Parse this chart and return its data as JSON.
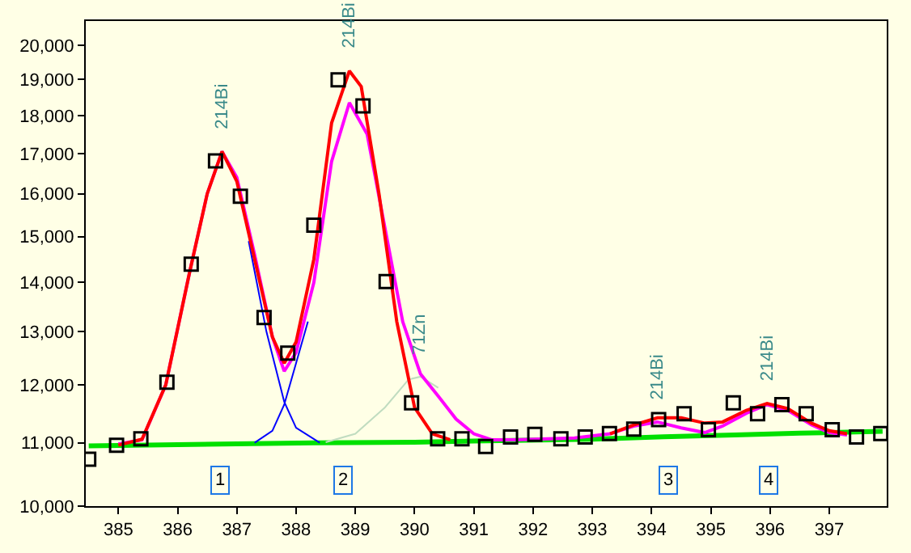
{
  "chart_data": {
    "type": "line",
    "xlim": [
      384.45,
      397.97
    ],
    "xticks": [
      385,
      386,
      387,
      388,
      389,
      390,
      391,
      392,
      393,
      394,
      395,
      396,
      397
    ],
    "ylim": [
      10000,
      20750
    ],
    "yticks": [
      {
        "value": 10000,
        "label": "10,000"
      },
      {
        "value": 11000,
        "label": "11,000"
      },
      {
        "value": 12000,
        "label": "12,000"
      },
      {
        "value": 13000,
        "label": "13,000"
      },
      {
        "value": 14000,
        "label": "14,000"
      },
      {
        "value": 15000,
        "label": "15,000"
      },
      {
        "value": 16000,
        "label": "16,000"
      },
      {
        "value": 17000,
        "label": "17,000"
      },
      {
        "value": 18000,
        "label": "18,000"
      },
      {
        "value": 19000,
        "label": "19,000"
      },
      {
        "value": 20000,
        "label": "20,000"
      }
    ],
    "log": true,
    "grid": false,
    "legend": false,
    "series": [
      {
        "color": "#00e000",
        "x": [
          384.5,
          386.0,
          388.3,
          390.0,
          391.0,
          393.0,
          394.2,
          395.4,
          396.5,
          397.9
        ],
        "values": [
          10950,
          10970,
          11000,
          11010,
          11030,
          11060,
          11100,
          11130,
          11160,
          11190
        ]
      },
      {
        "color": "#c0dcc0",
        "x": [
          388.5,
          389.0,
          389.5,
          389.9,
          390.1,
          390.4
        ],
        "values": [
          11010,
          11150,
          11600,
          12100,
          12150,
          11950
        ]
      },
      {
        "color": "#0000ff",
        "x": [
          387.2,
          387.5,
          387.8,
          388.0,
          388.4,
          null,
          387.3,
          387.6,
          387.8,
          388.0,
          388.2
        ],
        "values": [
          14900,
          13000,
          11700,
          11250,
          11000,
          null,
          11000,
          11200,
          11650,
          12400,
          13200
        ]
      },
      {
        "color": "#ff00ff",
        "x": [
          385.0,
          385.4,
          385.8,
          386.2,
          386.5,
          386.75,
          387.0,
          387.3,
          387.6,
          387.8,
          388.0,
          388.3,
          388.6,
          388.9,
          389.2,
          389.5,
          389.8,
          390.1,
          390.4,
          390.7,
          391.0,
          391.3,
          391.7,
          392.7,
          393.3,
          393.7,
          394.1,
          394.5,
          394.9,
          395.2,
          395.6,
          395.95,
          396.3,
          396.7,
          397.0,
          397.3
        ],
        "values": [
          10980,
          11050,
          12000,
          14200,
          16000,
          17050,
          16400,
          14600,
          12900,
          12250,
          12600,
          14000,
          16800,
          18350,
          17500,
          15200,
          13200,
          12200,
          11800,
          11400,
          11150,
          11050,
          11050,
          11080,
          11150,
          11280,
          11350,
          11250,
          11170,
          11280,
          11500,
          11650,
          11550,
          11300,
          11170,
          11130
        ]
      },
      {
        "color": "#ff0000",
        "x": [
          385.0,
          385.4,
          385.8,
          386.2,
          386.5,
          386.75,
          387.0,
          387.3,
          387.6,
          387.8,
          388.0,
          388.3,
          388.6,
          388.9,
          389.1,
          389.4,
          389.7,
          390.0,
          390.3,
          390.6,
          null,
          393.3,
          393.7,
          394.1,
          394.5,
          394.9,
          395.2,
          395.6,
          395.95,
          396.3,
          396.7,
          397.0,
          397.3
        ],
        "values": [
          10960,
          11060,
          12000,
          14200,
          16000,
          17050,
          16300,
          14500,
          12900,
          12400,
          12800,
          14500,
          17800,
          19250,
          18800,
          16000,
          13200,
          11600,
          11150,
          11050,
          null,
          11150,
          11300,
          11420,
          11420,
          11330,
          11350,
          11550,
          11670,
          11580,
          11330,
          11200,
          11150
        ]
      },
      {
        "type": "scatter",
        "marker": "square",
        "color": "#000000",
        "x": [
          384.5,
          384.97,
          385.38,
          385.82,
          386.23,
          386.64,
          387.06,
          387.46,
          387.86,
          388.3,
          388.71,
          389.13,
          389.52,
          389.95,
          390.39,
          390.8,
          391.2,
          391.62,
          392.03,
          392.47,
          392.88,
          393.29,
          393.7,
          394.12,
          394.55,
          394.96,
          395.38,
          395.79,
          396.2,
          396.61,
          397.05,
          397.46,
          397.87
        ],
        "values": [
          10730,
          10960,
          11065,
          12050,
          14390,
          16810,
          15940,
          13280,
          12590,
          15260,
          18990,
          18260,
          14020,
          11680,
          11065,
          11065,
          10940,
          11095,
          11140,
          11065,
          11095,
          11155,
          11230,
          11390,
          11490,
          11220,
          11680,
          11490,
          11650,
          11490,
          11220,
          11095,
          11155
        ]
      }
    ],
    "annotations": [
      {
        "text": "214Bi",
        "x": 386.75,
        "y": 17050
      },
      {
        "text": "214Bi",
        "x": 388.9,
        "y": 19250
      },
      {
        "text": "71Zn",
        "x": 390.1,
        "y": 12150
      },
      {
        "text": "214Bi",
        "x": 394.1,
        "y": 11350
      },
      {
        "text": "214Bi",
        "x": 395.95,
        "y": 11670
      },
      {
        "text": "1",
        "x": 386.72,
        "y": 10396
      },
      {
        "text": "2",
        "x": 388.8,
        "y": 10396
      },
      {
        "text": "3",
        "x": 394.28,
        "y": 10396
      },
      {
        "text": "4",
        "x": 395.97,
        "y": 10396
      }
    ]
  }
}
